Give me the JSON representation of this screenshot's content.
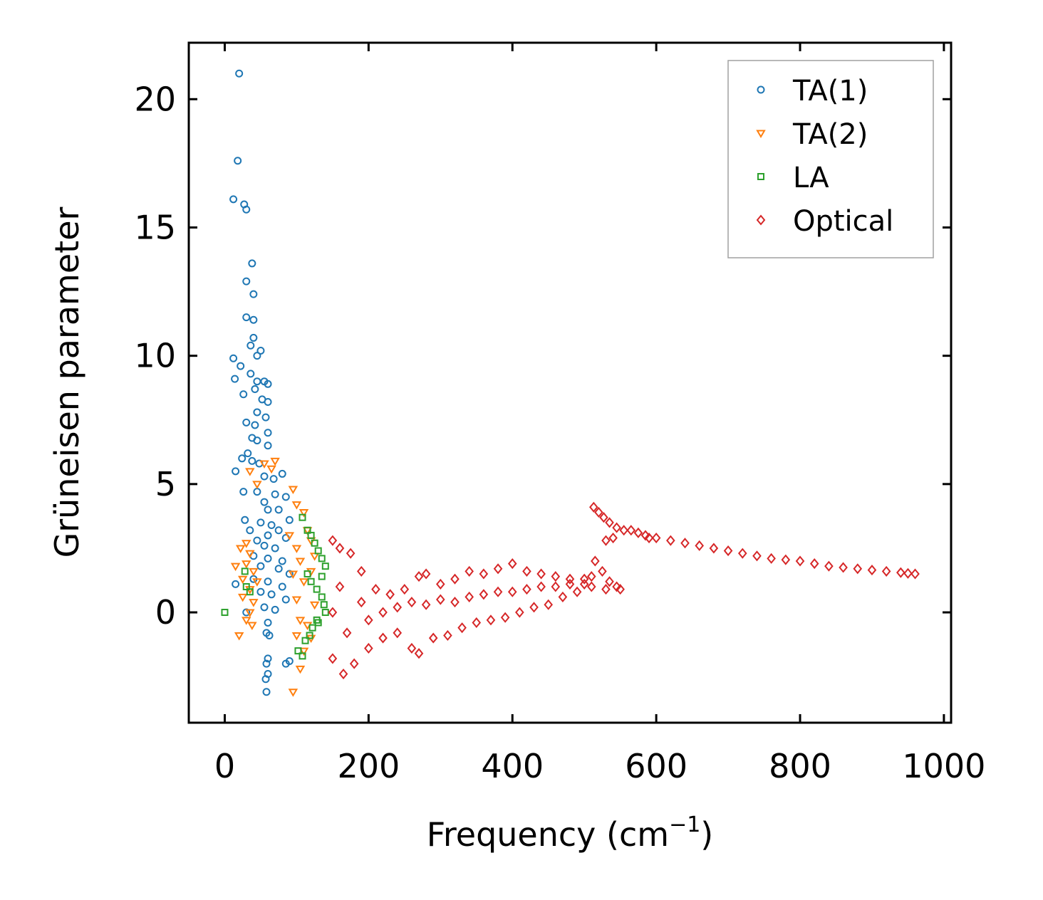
{
  "chart_data": {
    "type": "scatter",
    "title": "",
    "xlabel": "Frequency (cm",
    "xlabel_sup": "−1",
    "xlabel_close": ")",
    "ylabel": "Grüneisen parameter",
    "xlim": [
      -50,
      1010
    ],
    "ylim": [
      -4.3,
      22.2
    ],
    "x_ticks": [
      0,
      200,
      400,
      600,
      800,
      1000
    ],
    "x_tick_labels": [
      "0",
      "200",
      "400",
      "600",
      "800",
      "1000"
    ],
    "y_ticks": [
      0,
      5,
      10,
      15,
      20
    ],
    "y_tick_labels": [
      "0",
      "5",
      "10",
      "15",
      "20"
    ],
    "legend_position": "top-right",
    "series": [
      {
        "name": "TA(1)",
        "marker": "circle",
        "color": "#1f77b4",
        "points": [
          [
            20,
            21
          ],
          [
            18,
            17.6
          ],
          [
            12,
            16.1
          ],
          [
            27,
            15.9
          ],
          [
            30,
            15.7
          ],
          [
            38,
            13.6
          ],
          [
            30,
            12.9
          ],
          [
            40,
            12.4
          ],
          [
            30,
            11.5
          ],
          [
            40,
            11.4
          ],
          [
            40,
            10.7
          ],
          [
            36,
            10.4
          ],
          [
            50,
            10.2
          ],
          [
            45,
            10.0
          ],
          [
            12,
            9.9
          ],
          [
            22,
            9.6
          ],
          [
            36,
            9.3
          ],
          [
            14,
            9.1
          ],
          [
            45,
            9.0
          ],
          [
            55,
            9.0
          ],
          [
            60,
            8.9
          ],
          [
            42,
            8.7
          ],
          [
            26,
            8.5
          ],
          [
            52,
            8.3
          ],
          [
            60,
            8.2
          ],
          [
            45,
            7.8
          ],
          [
            57,
            7.6
          ],
          [
            30,
            7.4
          ],
          [
            42,
            7.3
          ],
          [
            60,
            7.0
          ],
          [
            38,
            6.8
          ],
          [
            45,
            6.7
          ],
          [
            60,
            6.5
          ],
          [
            32,
            6.2
          ],
          [
            24,
            6.0
          ],
          [
            38,
            5.9
          ],
          [
            48,
            5.8
          ],
          [
            15,
            5.5
          ],
          [
            55,
            5.3
          ],
          [
            68,
            5.2
          ],
          [
            80,
            5.4
          ],
          [
            26,
            4.7
          ],
          [
            45,
            4.7
          ],
          [
            70,
            4.6
          ],
          [
            55,
            4.3
          ],
          [
            85,
            4.5
          ],
          [
            60,
            4.0
          ],
          [
            75,
            4.0
          ],
          [
            28,
            3.6
          ],
          [
            50,
            3.5
          ],
          [
            65,
            3.4
          ],
          [
            90,
            3.6
          ],
          [
            35,
            3.2
          ],
          [
            60,
            3.0
          ],
          [
            75,
            3.2
          ],
          [
            45,
            2.8
          ],
          [
            85,
            2.9
          ],
          [
            55,
            2.6
          ],
          [
            70,
            2.5
          ],
          [
            40,
            2.2
          ],
          [
            60,
            2.1
          ],
          [
            80,
            2.0
          ],
          [
            50,
            1.8
          ],
          [
            75,
            1.7
          ],
          [
            90,
            1.5
          ],
          [
            15,
            1.1
          ],
          [
            40,
            1.3
          ],
          [
            60,
            1.2
          ],
          [
            80,
            1.0
          ],
          [
            50,
            0.8
          ],
          [
            65,
            0.7
          ],
          [
            85,
            0.5
          ],
          [
            30,
            0.0
          ],
          [
            55,
            0.2
          ],
          [
            70,
            0.1
          ],
          [
            60,
            -0.4
          ],
          [
            58,
            -0.8
          ],
          [
            62,
            -0.9
          ],
          [
            60,
            -1.8
          ],
          [
            58,
            -2.0
          ],
          [
            60,
            -2.4
          ],
          [
            57,
            -2.6
          ],
          [
            58,
            -3.1
          ],
          [
            85,
            -2.0
          ],
          [
            90,
            -1.9
          ]
        ]
      },
      {
        "name": "TA(2)",
        "marker": "triangle-down",
        "color": "#ff7f0e",
        "points": [
          [
            30,
            2.7
          ],
          [
            22,
            2.5
          ],
          [
            35,
            2.3
          ],
          [
            30,
            1.9
          ],
          [
            15,
            1.8
          ],
          [
            40,
            1.6
          ],
          [
            25,
            1.3
          ],
          [
            45,
            1.2
          ],
          [
            35,
            0.9
          ],
          [
            25,
            0.6
          ],
          [
            40,
            0.4
          ],
          [
            35,
            0.0
          ],
          [
            30,
            -0.3
          ],
          [
            38,
            -0.5
          ],
          [
            20,
            -0.9
          ],
          [
            95,
            -3.1
          ],
          [
            35,
            5.5
          ],
          [
            45,
            5.0
          ],
          [
            55,
            5.8
          ],
          [
            65,
            5.6
          ],
          [
            70,
            5.9
          ],
          [
            95,
            4.8
          ],
          [
            100,
            4.2
          ],
          [
            110,
            3.9
          ],
          [
            90,
            3.0
          ],
          [
            100,
            2.5
          ],
          [
            105,
            2.0
          ],
          [
            95,
            1.5
          ],
          [
            110,
            1.2
          ],
          [
            100,
            0.5
          ],
          [
            105,
            -0.3
          ],
          [
            100,
            -0.9
          ],
          [
            110,
            -1.5
          ],
          [
            105,
            -2.2
          ],
          [
            120,
            -1.0
          ],
          [
            115,
            -0.5
          ],
          [
            125,
            0.3
          ],
          [
            120,
            2.8
          ],
          [
            115,
            3.2
          ],
          [
            125,
            2.2
          ],
          [
            120,
            1.6
          ]
        ]
      },
      {
        "name": "LA",
        "marker": "square",
        "color": "#2ca02c",
        "points": [
          [
            0,
            0.0
          ],
          [
            28,
            1.6
          ],
          [
            30,
            1.0
          ],
          [
            35,
            0.8
          ],
          [
            108,
            3.7
          ],
          [
            115,
            3.2
          ],
          [
            120,
            3.0
          ],
          [
            125,
            2.7
          ],
          [
            130,
            2.4
          ],
          [
            135,
            2.1
          ],
          [
            140,
            1.8
          ],
          [
            115,
            1.5
          ],
          [
            120,
            1.2
          ],
          [
            128,
            0.9
          ],
          [
            135,
            0.6
          ],
          [
            138,
            0.3
          ],
          [
            140,
            0.0
          ],
          [
            128,
            -0.3
          ],
          [
            122,
            -0.6
          ],
          [
            118,
            -0.9
          ],
          [
            112,
            -1.1
          ],
          [
            102,
            -1.5
          ],
          [
            108,
            -1.7
          ],
          [
            130,
            -0.4
          ],
          [
            135,
            1.4
          ]
        ]
      },
      {
        "name": "Optical",
        "marker": "diamond",
        "color": "#d62728",
        "points": [
          [
            150,
            2.8
          ],
          [
            160,
            2.5
          ],
          [
            175,
            2.3
          ],
          [
            190,
            1.6
          ],
          [
            210,
            0.9
          ],
          [
            230,
            0.7
          ],
          [
            250,
            0.9
          ],
          [
            270,
            1.4
          ],
          [
            280,
            1.5
          ],
          [
            300,
            1.1
          ],
          [
            320,
            1.3
          ],
          [
            340,
            1.6
          ],
          [
            360,
            1.5
          ],
          [
            380,
            1.7
          ],
          [
            400,
            1.9
          ],
          [
            420,
            1.6
          ],
          [
            440,
            1.5
          ],
          [
            460,
            1.4
          ],
          [
            480,
            1.3
          ],
          [
            500,
            1.3
          ],
          [
            510,
            1.4
          ],
          [
            515,
            2.0
          ],
          [
            525,
            1.6
          ],
          [
            535,
            1.2
          ],
          [
            545,
            1.0
          ],
          [
            550,
            0.9
          ],
          [
            150,
            -1.8
          ],
          [
            165,
            -2.4
          ],
          [
            180,
            -2.0
          ],
          [
            200,
            -1.4
          ],
          [
            220,
            -1.0
          ],
          [
            240,
            -0.8
          ],
          [
            260,
            -1.4
          ],
          [
            270,
            -1.6
          ],
          [
            290,
            -1.0
          ],
          [
            310,
            -0.9
          ],
          [
            330,
            -0.6
          ],
          [
            350,
            -0.4
          ],
          [
            370,
            -0.3
          ],
          [
            390,
            -0.2
          ],
          [
            410,
            0.0
          ],
          [
            430,
            0.2
          ],
          [
            450,
            0.3
          ],
          [
            470,
            0.6
          ],
          [
            490,
            0.8
          ],
          [
            510,
            1.0
          ],
          [
            530,
            0.9
          ],
          [
            150,
            0.0
          ],
          [
            160,
            1.0
          ],
          [
            170,
            -0.8
          ],
          [
            190,
            0.4
          ],
          [
            200,
            -0.3
          ],
          [
            220,
            0.0
          ],
          [
            240,
            0.2
          ],
          [
            260,
            0.4
          ],
          [
            280,
            0.3
          ],
          [
            300,
            0.5
          ],
          [
            320,
            0.4
          ],
          [
            340,
            0.6
          ],
          [
            360,
            0.7
          ],
          [
            380,
            0.8
          ],
          [
            400,
            0.8
          ],
          [
            420,
            0.9
          ],
          [
            440,
            1.0
          ],
          [
            460,
            1.0
          ],
          [
            480,
            1.1
          ],
          [
            500,
            1.1
          ],
          [
            513,
            4.1
          ],
          [
            520,
            3.9
          ],
          [
            527,
            3.7
          ],
          [
            535,
            3.5
          ],
          [
            545,
            3.3
          ],
          [
            555,
            3.2
          ],
          [
            565,
            3.2
          ],
          [
            575,
            3.1
          ],
          [
            585,
            3.0
          ],
          [
            530,
            2.8
          ],
          [
            540,
            2.9
          ],
          [
            590,
            2.9
          ],
          [
            600,
            2.9
          ],
          [
            620,
            2.8
          ],
          [
            640,
            2.7
          ],
          [
            660,
            2.6
          ],
          [
            680,
            2.5
          ],
          [
            700,
            2.4
          ],
          [
            720,
            2.3
          ],
          [
            740,
            2.2
          ],
          [
            760,
            2.1
          ],
          [
            780,
            2.05
          ],
          [
            800,
            2.0
          ],
          [
            820,
            1.9
          ],
          [
            840,
            1.8
          ],
          [
            860,
            1.75
          ],
          [
            880,
            1.7
          ],
          [
            900,
            1.65
          ],
          [
            920,
            1.6
          ],
          [
            940,
            1.55
          ],
          [
            950,
            1.52
          ],
          [
            960,
            1.5
          ]
        ]
      }
    ]
  }
}
